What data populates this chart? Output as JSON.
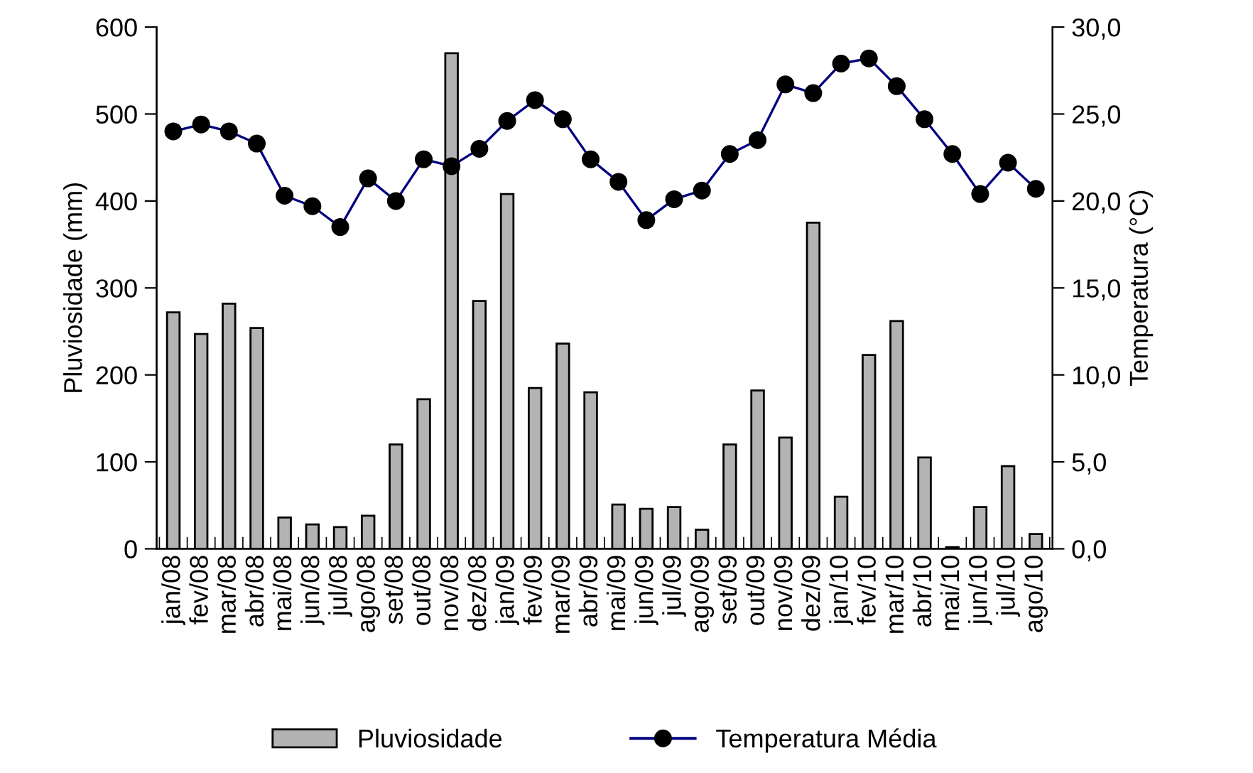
{
  "chart_data": {
    "type": "bar",
    "categories": [
      "jan/08",
      "fev/08",
      "mar/08",
      "abr/08",
      "mai/08",
      "jun/08",
      "jul/08",
      "ago/08",
      "set/08",
      "out/08",
      "nov/08",
      "dez/08",
      "jan/09",
      "fev/09",
      "mar/09",
      "abr/09",
      "mai/09",
      "jun/09",
      "jul/09",
      "ago/09",
      "set/09",
      "out/09",
      "nov/09",
      "dez/09",
      "jan/10",
      "fev/10",
      "mar/10",
      "abr/10",
      "mai/10",
      "jun/10",
      "jul/10",
      "ago/10"
    ],
    "series": [
      {
        "name": "Pluviosidade",
        "color": "#b3b3b3",
        "values": [
          272,
          247,
          282,
          254,
          36,
          28,
          25,
          38,
          120,
          172,
          570,
          285,
          408,
          185,
          236,
          180,
          51,
          46,
          48,
          22,
          120,
          182,
          128,
          375,
          60,
          223,
          262,
          105,
          2,
          48,
          95,
          17
        ]
      },
      {
        "name": "Temperatura Média",
        "type": "line",
        "axis": "y2",
        "color": "#000080",
        "marker": "circle",
        "values": [
          24.0,
          24.4,
          24.0,
          23.3,
          20.3,
          19.7,
          18.5,
          21.3,
          20.0,
          22.4,
          22.0,
          23.0,
          24.6,
          25.8,
          24.7,
          22.4,
          21.1,
          18.9,
          20.1,
          20.6,
          22.7,
          23.5,
          26.7,
          26.2,
          27.9,
          28.2,
          26.6,
          24.7,
          22.7,
          20.4,
          22.2,
          20.7
        ]
      }
    ],
    "ylabel": "Pluviosidade (mm)",
    "y2label": "Temperatura (°C)",
    "ylim": [
      0,
      600
    ],
    "yticks": [
      0,
      100,
      200,
      300,
      400,
      500,
      600
    ],
    "y2lim": [
      0,
      30
    ],
    "y2ticks": [
      {
        "value": 0,
        "label": "0,0"
      },
      {
        "value": 5,
        "label": "5,0"
      },
      {
        "value": 10,
        "label": "10,0"
      },
      {
        "value": 15,
        "label": "15,0"
      },
      {
        "value": 20,
        "label": "20,0"
      },
      {
        "value": 25,
        "label": "25,0"
      },
      {
        "value": 30,
        "label": "30,0"
      }
    ],
    "legend": "bottom",
    "grid": false
  }
}
